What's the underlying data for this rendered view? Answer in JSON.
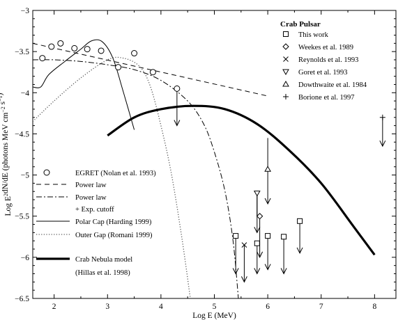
{
  "chart_data": {
    "type": "line",
    "title": "",
    "xlabel": "Log E (MeV)",
    "ylabel_main": "Log E",
    "ylabel_sup": "2",
    "ylabel_mid": "dN/dE (photons MeV cm",
    "ylabel_sup2": "−2",
    "ylabel_end": " s",
    "ylabel_sup3": "−1",
    "ylabel_close": ")",
    "xlim": [
      1.6,
      8.4
    ],
    "ylim": [
      -6.5,
      -3
    ],
    "xticks": [
      "2",
      "3",
      "4",
      "5",
      "6",
      "7",
      "8"
    ],
    "yticks": [
      "−3",
      "−3.5",
      "−4",
      "−4.5",
      "−5",
      "−5.5",
      "−6",
      "−6.5"
    ],
    "grid": false,
    "legend_top_title": "Crab Pulsar",
    "legend_top": [
      {
        "label": "This work",
        "marker": "square"
      },
      {
        "label": "Weekes et al. 1989",
        "marker": "diamond"
      },
      {
        "label": "Reynolds et al. 1993",
        "marker": "x"
      },
      {
        "label": "Goret et al. 1993",
        "marker": "triangle-down"
      },
      {
        "label": "Dowthwaite et al. 1984",
        "marker": "triangle-up"
      },
      {
        "label": "Borione et al. 1997",
        "marker": "plus"
      }
    ],
    "legend_bottom": [
      {
        "label": "EGRET (Nolan et al. 1993)",
        "style": "circle"
      },
      {
        "label": "Power law",
        "style": "dashed"
      },
      {
        "label": "Power law",
        "style": "dashdot"
      },
      {
        "label": "+ Exp. cutoff",
        "style": "none"
      },
      {
        "label": "Polar Cap (Harding 1999)",
        "style": "solid-thin"
      },
      {
        "label": "Outer Gap (Romani 1999)",
        "style": "dotted"
      },
      {
        "label": "Crab Nebula model",
        "style": "solid-thick"
      },
      {
        "label": "(Hillas et al. 1998)",
        "style": "none"
      }
    ],
    "series": [
      {
        "style": "circle",
        "x": [
          1.78,
          1.95,
          2.12,
          2.38,
          2.62,
          2.88,
          3.2,
          3.5,
          3.85,
          4.3
        ],
        "y": [
          -3.58,
          -3.44,
          -3.4,
          -3.46,
          -3.47,
          -3.49,
          -3.69,
          -3.52,
          -3.75,
          -3.95
        ]
      },
      {
        "style": "dashed",
        "x": [
          1.6,
          6.0
        ],
        "y": [
          -3.4,
          -4.04
        ]
      },
      {
        "style": "dashdot",
        "x": [
          1.6,
          2.0,
          2.5,
          3.0,
          3.5,
          4.0,
          4.5,
          4.8,
          5.0,
          5.2,
          5.35,
          5.45
        ],
        "y": [
          -3.6,
          -3.6,
          -3.62,
          -3.66,
          -3.72,
          -3.85,
          -4.1,
          -4.38,
          -4.72,
          -5.2,
          -5.8,
          -6.5
        ]
      },
      {
        "style": "solid-thin",
        "x": [
          1.6,
          1.75,
          1.9,
          2.2,
          2.5,
          2.7,
          2.9,
          3.1,
          3.3,
          3.5
        ],
        "y": [
          -3.93,
          -3.93,
          -3.78,
          -3.62,
          -3.47,
          -3.37,
          -3.38,
          -3.58,
          -4.0,
          -4.45
        ]
      },
      {
        "style": "dotted",
        "x": [
          1.6,
          2.0,
          2.5,
          3.0,
          3.3,
          3.6,
          3.8,
          4.0,
          4.2,
          4.4,
          4.55
        ],
        "y": [
          -4.35,
          -4.1,
          -3.82,
          -3.6,
          -3.58,
          -3.68,
          -3.92,
          -4.4,
          -5.0,
          -5.8,
          -6.5
        ]
      },
      {
        "style": "solid-thick",
        "x": [
          3.0,
          3.5,
          4.0,
          4.6,
          5.2,
          5.8,
          6.4,
          7.0,
          7.6,
          8.0
        ],
        "y": [
          -4.52,
          -4.3,
          -4.2,
          -4.16,
          -4.2,
          -4.38,
          -4.7,
          -5.1,
          -5.62,
          -5.97
        ]
      }
    ],
    "upper_limits": [
      {
        "marker": "circle",
        "x": 4.3,
        "y": -3.95,
        "to": -4.4
      },
      {
        "marker": "square",
        "x": 5.4,
        "y": -5.74,
        "to": -6.2
      },
      {
        "marker": "square",
        "x": 5.8,
        "y": -5.83,
        "to": -6.2
      },
      {
        "marker": "square",
        "x": 6.0,
        "y": -5.74,
        "to": -6.15
      },
      {
        "marker": "square",
        "x": 6.3,
        "y": -5.75,
        "to": -6.2
      },
      {
        "marker": "square",
        "x": 6.6,
        "y": -5.56,
        "to": -5.95
      },
      {
        "marker": "diamond",
        "x": 5.85,
        "y": -5.5,
        "to": -6.0
      },
      {
        "marker": "x",
        "x": 5.56,
        "y": -5.85,
        "to": -6.3
      },
      {
        "marker": "triangle-down",
        "x": 5.8,
        "y": -5.22,
        "to": -5.7
      },
      {
        "marker": "triangle-up",
        "x": 6.0,
        "y": -4.93,
        "to": -5.35
      },
      {
        "marker": "plus",
        "x": 8.15,
        "y": -4.3,
        "to": -4.65
      }
    ],
    "bar_segments": [
      {
        "x": 6.0,
        "y1": -4.55,
        "y2": -4.93
      },
      {
        "x": 5.8,
        "y1": -5.5,
        "y2": -5.22
      }
    ]
  }
}
